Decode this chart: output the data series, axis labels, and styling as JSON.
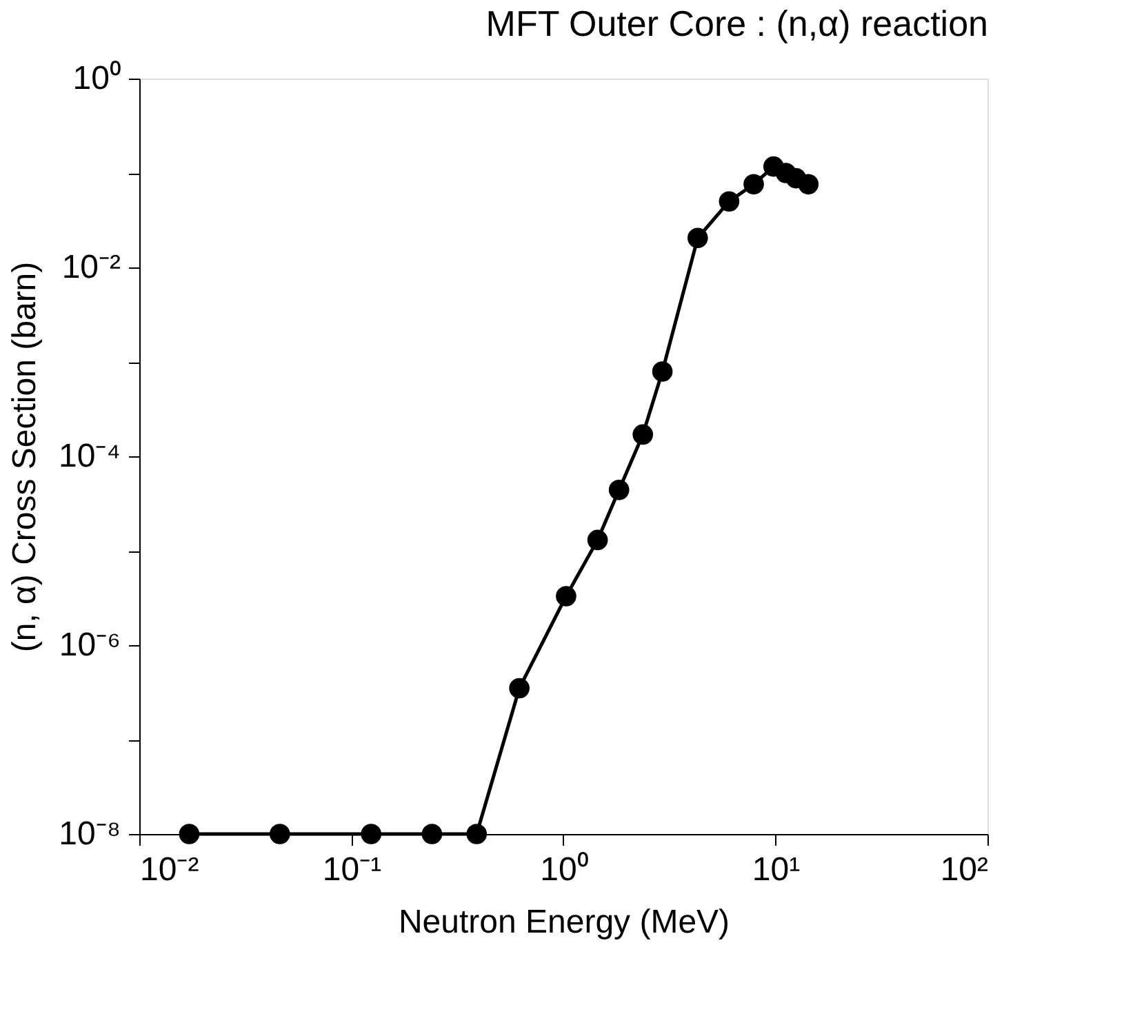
{
  "chart_data": {
    "type": "line",
    "title": "MFT Outer Core : (n,α)   reaction",
    "xlabel": "Neutron Energy (MeV)",
    "ylabel": "(n, α) Cross Section (barn)",
    "log": "xy",
    "xlim": [
      0.01,
      100
    ],
    "ylim": [
      1e-08,
      1
    ],
    "xticks": [
      {
        "value": 0.01,
        "label": "10⁻²"
      },
      {
        "value": 0.1,
        "label": "10⁻¹"
      },
      {
        "value": 1,
        "label": "10⁰"
      },
      {
        "value": 10,
        "label": "10¹"
      },
      {
        "value": 100,
        "label": "10²"
      }
    ],
    "yticks": [
      {
        "value": 1e-08,
        "label": "10⁻⁸"
      },
      {
        "value": 1e-07,
        "label": null
      },
      {
        "value": 1e-06,
        "label": "10⁻⁶"
      },
      {
        "value": 1e-05,
        "label": null
      },
      {
        "value": 0.0001,
        "label": "10⁻⁴"
      },
      {
        "value": 0.001,
        "label": null
      },
      {
        "value": 0.01,
        "label": "10⁻²"
      },
      {
        "value": 0.1,
        "label": null
      },
      {
        "value": 1,
        "label": "10⁰"
      }
    ],
    "marker": "circle",
    "line_style": "solid",
    "grid": false,
    "series": [
      {
        "color": "#000000",
        "x": [
          0.0172,
          0.046,
          0.124,
          0.24,
          0.39,
          0.62,
          1.03,
          1.45,
          1.83,
          2.37,
          2.93,
          4.3,
          6.05,
          7.9,
          9.8,
          11.2,
          12.5,
          14.3
        ],
        "values": [
          1e-08,
          1e-08,
          1e-08,
          1e-08,
          1e-08,
          3.5e-07,
          3.3e-06,
          1.3e-05,
          4.4e-05,
          0.00017,
          0.00079,
          0.0205,
          0.05,
          0.076,
          0.117,
          0.1,
          0.088,
          0.076
        ]
      }
    ]
  }
}
